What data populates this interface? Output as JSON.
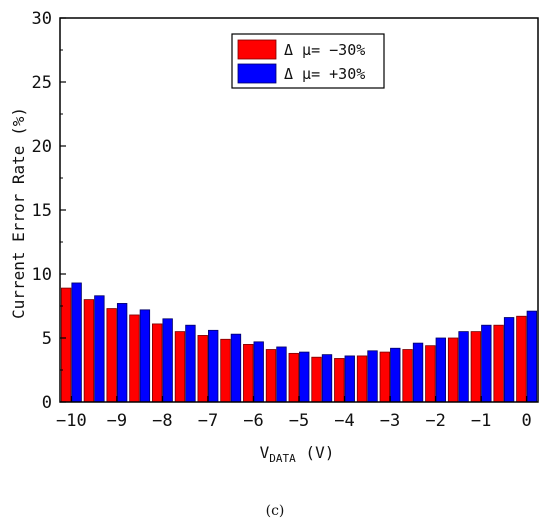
{
  "chart_data": {
    "type": "bar",
    "ylabel": "Current Error Rate (%)",
    "xlabel_main": "V",
    "xlabel_sub": "DATA",
    "xlabel_unit": " (V)",
    "panel_label": "(c)",
    "ylim": [
      0,
      30
    ],
    "yticks": [
      0,
      5,
      10,
      15,
      20,
      25,
      30
    ],
    "xlim": [
      -10.25,
      0.25
    ],
    "xticks": [
      -10,
      -9,
      -8,
      -7,
      -6,
      -5,
      -4,
      -3,
      -2,
      -1,
      0
    ],
    "xtick_labels": [
      "−10",
      "−9",
      "−8",
      "−7",
      "−6",
      "−5",
      "−4",
      "−3",
      "−2",
      "−1",
      "0"
    ],
    "legend_position": "top-center",
    "x": [
      -10,
      -9.5,
      -9,
      -8.5,
      -8,
      -7.5,
      -7,
      -6.5,
      -6,
      -5.5,
      -5,
      -4.5,
      -4,
      -3.5,
      -3,
      -2.5,
      -2,
      -1.5,
      -1,
      -0.5,
      0
    ],
    "series": [
      {
        "name": "Δ μ= −30%",
        "color": "#ff0000",
        "values": [
          8.9,
          8.0,
          7.3,
          6.8,
          6.1,
          5.5,
          5.2,
          4.9,
          4.5,
          4.1,
          3.8,
          3.5,
          3.4,
          3.6,
          3.9,
          4.1,
          4.4,
          5.0,
          5.5,
          6.0,
          6.7
        ]
      },
      {
        "name": "Δ μ= +30%",
        "color": "#0000ff",
        "values": [
          9.3,
          8.3,
          7.7,
          7.2,
          6.5,
          6.0,
          5.6,
          5.3,
          4.7,
          4.3,
          3.9,
          3.7,
          3.6,
          4.0,
          4.2,
          4.6,
          5.0,
          5.5,
          6.0,
          6.6,
          7.1
        ]
      }
    ]
  }
}
